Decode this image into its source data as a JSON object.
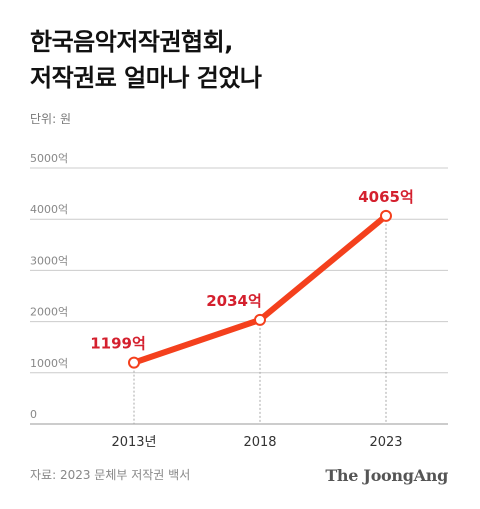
{
  "title_lines": [
    "한국음악저작권협회,",
    "저작권료 얼마나 걷었나"
  ],
  "unit": "단위: 원",
  "source": "자료: 2023 문체부 저작권 백서",
  "logo": "The JoongAng",
  "colors": {
    "line": "#f4401d",
    "label": "#d4202e",
    "grid": "#cccccc",
    "axis_text": "#888888",
    "tick_text": "#333333"
  },
  "chart_data": {
    "type": "line",
    "categories": [
      "2013년",
      "2018",
      "2023"
    ],
    "values": [
      1199,
      2034,
      4065
    ],
    "value_labels": [
      "1199억",
      "2034억",
      "4065억"
    ],
    "yticks": [
      0,
      1000,
      2000,
      3000,
      4000,
      5000
    ],
    "ytick_labels": [
      "0",
      "1000억",
      "2000억",
      "3000억",
      "4000억",
      "5000억"
    ],
    "ylim": [
      0,
      5000
    ],
    "grid": true,
    "title": "",
    "xlabel": "",
    "ylabel": ""
  }
}
